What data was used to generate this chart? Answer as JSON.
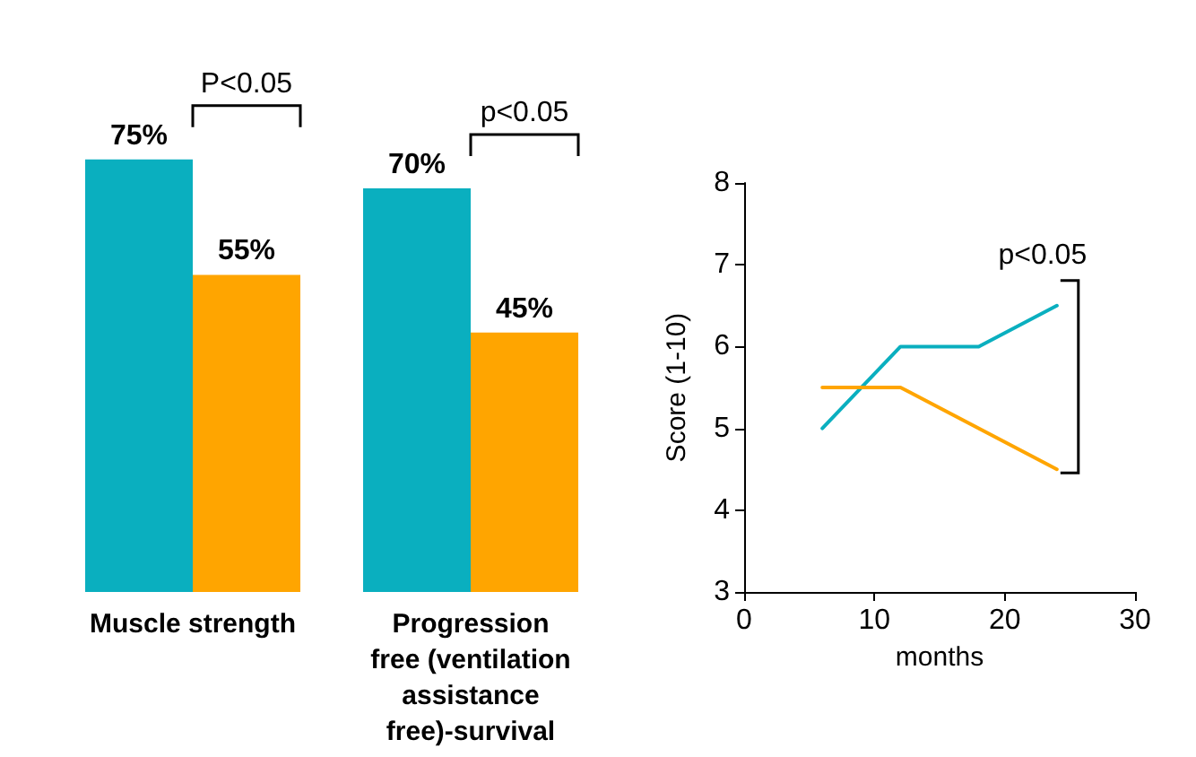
{
  "chart_data": [
    {
      "type": "bar",
      "categories": [
        "Muscle strength",
        "Progression\nfree (ventilation\nassistance\nfree)-survival"
      ],
      "series": [
        {
          "color": "#0aafbf",
          "values": [
            75,
            70
          ],
          "value_labels": [
            "75%",
            "70%"
          ]
        },
        {
          "color": "#ffa500",
          "values": [
            55,
            45
          ],
          "value_labels": [
            "55%",
            "45%"
          ]
        }
      ],
      "annotations": [
        "P<0.05",
        "p<0.05"
      ]
    },
    {
      "type": "line",
      "xlabel": "months",
      "ylabel": "Score (1-10)",
      "xlim": [
        0,
        30
      ],
      "xticks": [
        0,
        10,
        20,
        30
      ],
      "ylim": [
        3,
        8
      ],
      "yticks": [
        3,
        4,
        5,
        6,
        7,
        8
      ],
      "marker": "none",
      "line_style": "solid",
      "series": [
        {
          "color": "#0aafbf",
          "x": [
            6,
            12,
            18,
            24
          ],
          "values": [
            5,
            6,
            6,
            6.5
          ]
        },
        {
          "color": "#ffa500",
          "x": [
            6,
            12,
            24
          ],
          "values": [
            5.5,
            5.5,
            4.5
          ]
        }
      ],
      "annotations": [
        "p<0.05"
      ]
    }
  ]
}
